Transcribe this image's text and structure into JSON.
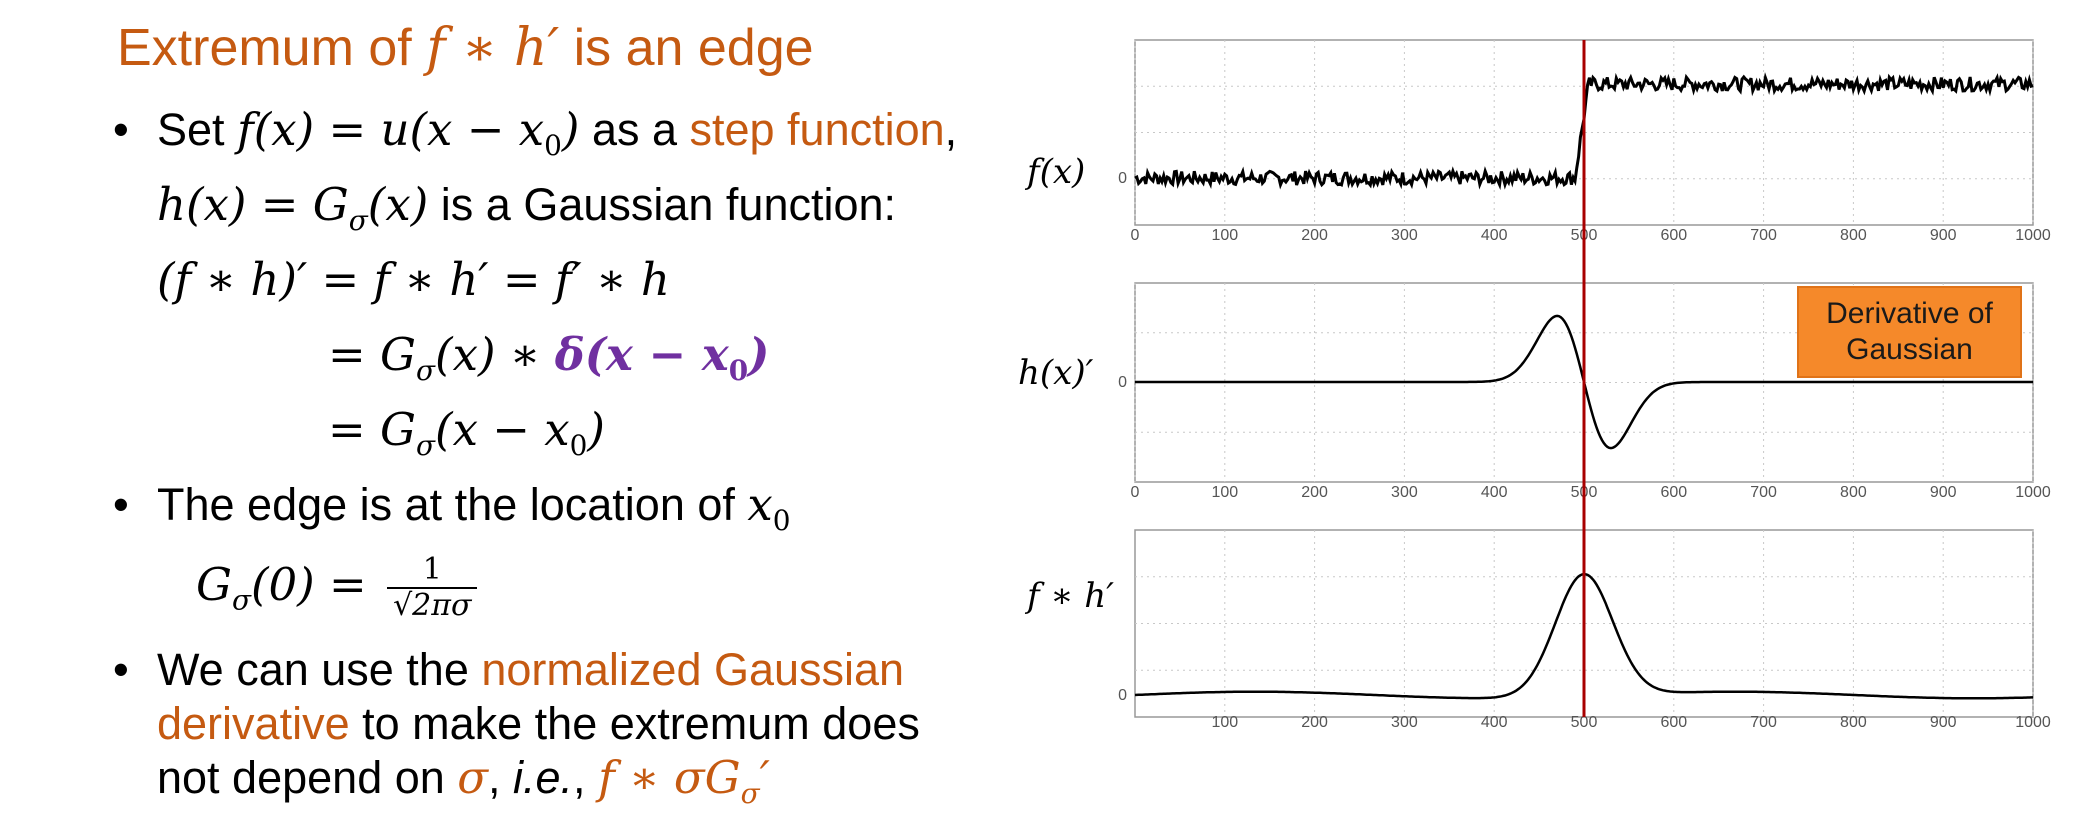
{
  "title": {
    "prefix": "Extremum of ",
    "expr": "f ∗ h′",
    "suffix": " is an edge"
  },
  "bullet_glyph": "•",
  "b1": {
    "l1_pre": "Set ",
    "l1_expr": "f(x) = u(x − x",
    "l1_sub": "0",
    "l1_close": ")",
    "l1_mid": " as a ",
    "l1_orange": "step function",
    "l1_end": ",",
    "l2_expr": "h(x) = G",
    "l2_sub": "σ",
    "l2_close": "(x)",
    "l2_text": " is a Gaussian function:",
    "eq1": "(f ∗ h)′  = f ∗ h′ = f′ ∗ h",
    "eq2_pre": "= G",
    "eq2_sub": "σ",
    "eq2_mid": "(x) ∗ ",
    "eq2_purple": "δ(x − x",
    "eq2_psub": "0",
    "eq2_pclose": ")",
    "eq3_pre": "= G",
    "eq3_sub": "σ",
    "eq3_mid": "(x − x",
    "eq3_sub2": "0",
    "eq3_close": ")"
  },
  "b2": {
    "text": "The edge is at the location of ",
    "var": "x",
    "var_sub": "0",
    "g_pre": "G",
    "g_sub": "σ",
    "g_mid": "(0) = ",
    "num": "1",
    "den": "√2πσ"
  },
  "b3": {
    "l1_pre": "We can use the ",
    "l1_orange": "normalized Gaussian",
    "l2_orange": "derivative",
    "l2_text": " to make the extremum does",
    "l3_text": "not depend on  ",
    "l3_sigma": "σ",
    "l3_comma": ", ",
    "l3_ie": "i.e.",
    "l3_comma2": ", ",
    "l3_expr": "f ∗ σG",
    "l3_sub": "σ",
    "l3_prime": "′"
  },
  "plot_labels": {
    "f": "f(x)",
    "h": "h(x)′",
    "fh": "f ∗ h′"
  },
  "callout": {
    "l1": "Derivative of",
    "l2": "Gaussian"
  },
  "colors": {
    "accent": "#C55A11",
    "purple": "#7030A0",
    "marker": "#A80000",
    "callout": "#F5892A"
  },
  "chart_data": [
    {
      "type": "line",
      "xlim": [
        0,
        1000
      ],
      "x_ticks": [
        0,
        100,
        200,
        300,
        400,
        500,
        600,
        700,
        800,
        900,
        1000
      ],
      "y_ticks": [
        "0"
      ],
      "grid": true,
      "series": [
        {
          "shape": "noisy step",
          "low": 0,
          "high": 2,
          "step_at": 500
        }
      ],
      "marker_x": 500
    },
    {
      "type": "line",
      "xlim": [
        0,
        1000
      ],
      "x_ticks": [
        0,
        100,
        200,
        300,
        400,
        500,
        600,
        700,
        800,
        900,
        1000
      ],
      "y_ticks": [
        "0"
      ],
      "grid": true,
      "series": [
        {
          "shape": "derivative of gaussian",
          "center": 500,
          "peak_x": 470,
          "trough_x": 530,
          "amplitude": 1.2
        }
      ],
      "marker_x": 500
    },
    {
      "type": "line",
      "xlim": [
        0,
        1000
      ],
      "x_ticks": [
        100,
        200,
        300,
        400,
        500,
        600,
        700,
        800,
        900,
        1000
      ],
      "y_ticks": [
        "0"
      ],
      "grid": true,
      "series": [
        {
          "shape": "gaussian peak",
          "center": 500,
          "peak": 2.6
        }
      ],
      "marker_x": 500
    }
  ]
}
